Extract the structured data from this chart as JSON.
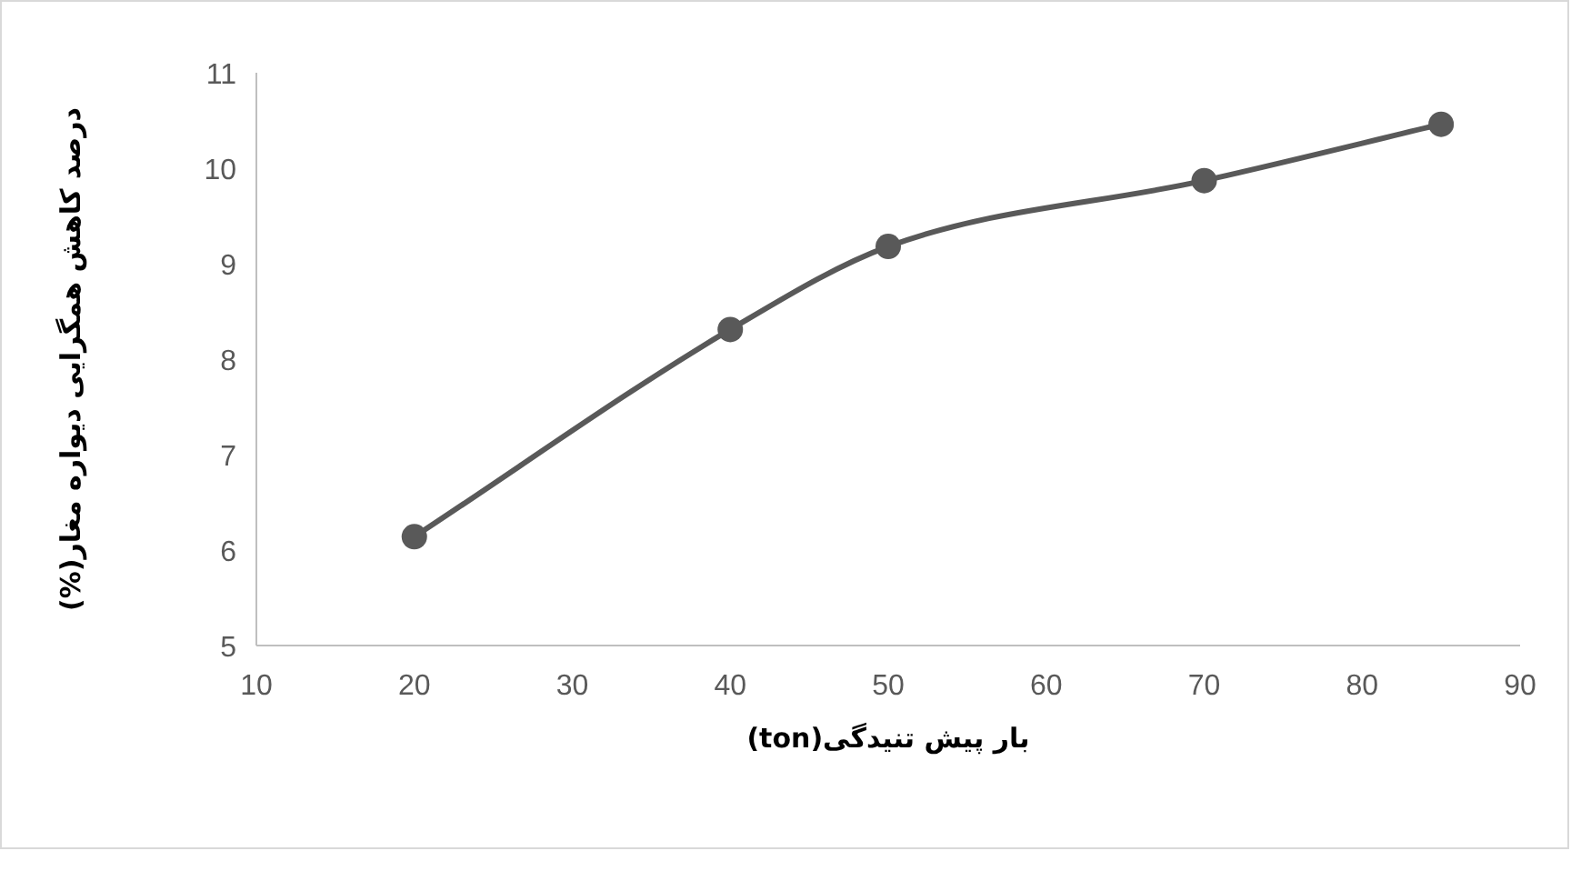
{
  "chart_data": {
    "type": "line",
    "xlabel": "بار پیش تنیدگی(ton)",
    "ylabel": "درصد کاهش همگرایی دیواره مغار(%)",
    "x": [
      20,
      40,
      50,
      70,
      85
    ],
    "series": [
      {
        "color": "#595959",
        "values": [
          6.14,
          8.31,
          9.18,
          9.87,
          10.46
        ]
      }
    ],
    "xlim": [
      10,
      90
    ],
    "xticks": [
      10,
      20,
      30,
      40,
      50,
      60,
      70,
      80,
      90
    ],
    "ylim": [
      5,
      11
    ],
    "yticks": [
      5,
      6,
      7,
      8,
      9,
      10,
      11
    ],
    "grid": false,
    "marker": "circle",
    "line_style": "solid"
  }
}
